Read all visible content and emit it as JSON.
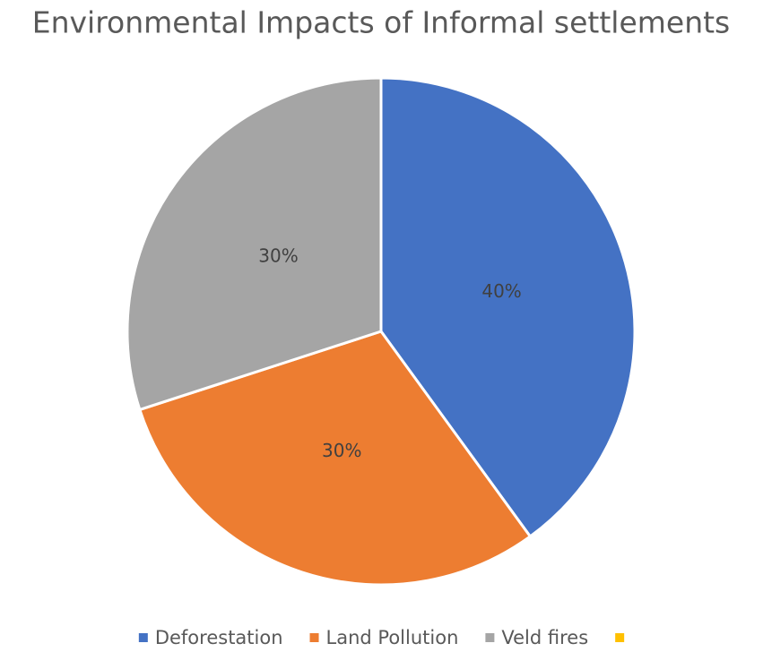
{
  "chart_data": {
    "type": "pie",
    "title": "Environmental Impacts of Informal settlements",
    "categories": [
      "Deforestation",
      "Land Pollution",
      "Veld fires",
      null
    ],
    "values": [
      40,
      30,
      30,
      0
    ],
    "value_labels": [
      "40%",
      "30%",
      "30%",
      null
    ],
    "colors": [
      "#4472c4",
      "#ed7d31",
      "#a5a5a5",
      "#ffc000"
    ],
    "legend": "bottom"
  }
}
